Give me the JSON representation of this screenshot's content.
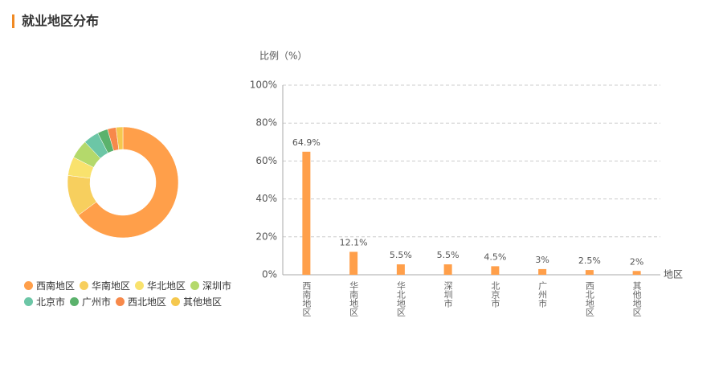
{
  "title": "就业地区分布",
  "chart_data": [
    {
      "type": "pie",
      "categories": [
        "西南地区",
        "华南地区",
        "华北地区",
        "深圳市",
        "北京市",
        "广州市",
        "西北地区",
        "其他地区"
      ],
      "values": [
        64.9,
        12.1,
        5.5,
        5.5,
        4.5,
        3,
        2.5,
        2
      ],
      "colors": [
        "#ff9f4a",
        "#f7cf5e",
        "#f9e26d",
        "#b4d96b",
        "#6cc6a6",
        "#5bb26c",
        "#f7894a",
        "#f5c84e"
      ]
    },
    {
      "type": "bar",
      "y_label": "比例（%）",
      "x_label": "地区",
      "categories": [
        "西南地区",
        "华南地区",
        "华北地区",
        "深圳市",
        "北京市",
        "广州市",
        "西北地区",
        "其他地区"
      ],
      "values": [
        64.9,
        12.1,
        5.5,
        5.5,
        4.5,
        3,
        2.5,
        2
      ],
      "value_labels": [
        "64.9%",
        "12.1%",
        "5.5%",
        "5.5%",
        "4.5%",
        "3%",
        "2.5%",
        "2%"
      ],
      "color": "#ff9f4a",
      "ylim": [
        0,
        100
      ],
      "yticks": [
        {
          "value": 0,
          "label": "0%"
        },
        {
          "value": 20,
          "label": "20%"
        },
        {
          "value": 40,
          "label": "40%"
        },
        {
          "value": 60,
          "label": "60%"
        },
        {
          "value": 80,
          "label": "80%"
        },
        {
          "value": 100,
          "label": "100%"
        }
      ],
      "grid": true
    }
  ]
}
